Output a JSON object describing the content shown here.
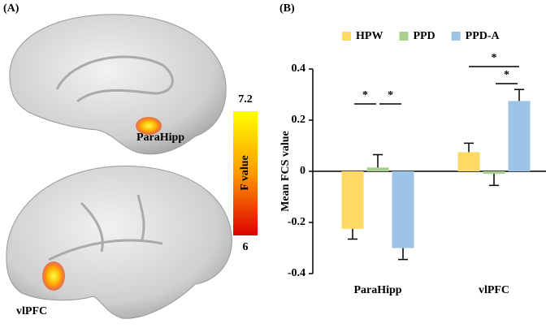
{
  "panel_a": {
    "label": "(A)",
    "regions": [
      "ParaHipp",
      "vlPFC"
    ],
    "colorbar": {
      "max": 7.2,
      "min": 6,
      "label": "F value"
    }
  },
  "chart_data": {
    "type": "bar",
    "panel_label": "(B)",
    "ylabel": "Mean FCS value",
    "categories": [
      "ParaHipp",
      "vlPFC"
    ],
    "series": [
      {
        "name": "HPW",
        "color": "#ffd966",
        "values": [
          -0.225,
          0.075
        ],
        "errors": [
          0.04,
          0.035
        ]
      },
      {
        "name": "PPD",
        "color": "#a9d18e",
        "values": [
          0.015,
          -0.01
        ],
        "errors": [
          0.05,
          0.045
        ]
      },
      {
        "name": "PPD-A",
        "color": "#9dc3e6",
        "values": [
          -0.3,
          0.275
        ],
        "errors": [
          0.045,
          0.045
        ]
      }
    ],
    "ylim": [
      -0.4,
      0.4
    ],
    "yticks": [
      0.4,
      0.2,
      0,
      -0.2,
      -0.4
    ],
    "legend": "top",
    "annotations": [
      {
        "text": "*",
        "category": "ParaHipp",
        "between": [
          "HPW",
          "PPD"
        ]
      },
      {
        "text": "*",
        "category": "ParaHipp",
        "between": [
          "PPD",
          "PPD-A"
        ]
      },
      {
        "text": "*",
        "category": "vlPFC",
        "between": [
          "HPW",
          "PPD-A"
        ]
      },
      {
        "text": "*",
        "category": "vlPFC",
        "between": [
          "PPD",
          "PPD-A"
        ]
      }
    ]
  }
}
